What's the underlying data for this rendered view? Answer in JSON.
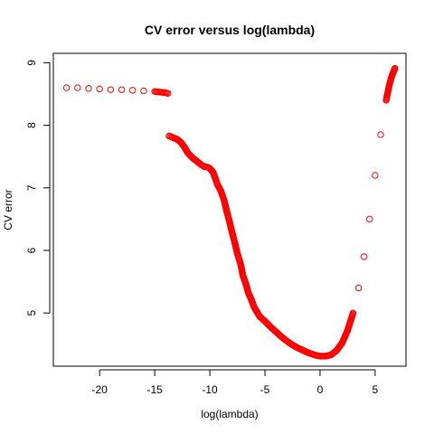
{
  "chart_data": {
    "type": "scatter",
    "title": "CV error versus log(lambda)",
    "xlabel": "log(lambda)",
    "ylabel": "CV error",
    "xlim": [
      -24.2,
      7.8
    ],
    "ylim": [
      4.15,
      9.15
    ],
    "xticks": [
      -20,
      -15,
      -10,
      -5,
      0,
      5
    ],
    "yticks": [
      5,
      6,
      7,
      8,
      9
    ],
    "xtick_labels": [
      "-20",
      "-15",
      "-10",
      "-5",
      "0",
      "5"
    ],
    "ytick_labels": [
      "5",
      "6",
      "7",
      "8",
      "9"
    ],
    "marker": "open-circle",
    "color": "#ff0000",
    "grid": false,
    "series": [
      {
        "x": [
          -23.0,
          -22.0,
          -21.0,
          -20.0,
          -19.0,
          -18.0,
          -17.0,
          -16.0,
          -15.0,
          -14.5,
          -14.0,
          -13.8,
          -13.7,
          -13.3,
          -13.0,
          -12.7,
          -12.5,
          -12.3,
          -12.0,
          -11.8,
          -11.5,
          -11.2,
          -11.0,
          -10.7,
          -10.5,
          -10.2,
          -10.0,
          -9.7,
          -9.5,
          -9.3,
          -9.0,
          -8.7,
          -8.5,
          -8.2,
          -8.0,
          -7.7,
          -7.5,
          -7.2,
          -7.0,
          -6.7,
          -6.5,
          -6.2,
          -6.0,
          -5.7,
          -5.5,
          -5.2,
          -5.0,
          -4.5,
          -4.0,
          -3.5,
          -3.0,
          -2.5,
          -2.0,
          -1.5,
          -1.0,
          -0.5,
          0.0,
          0.5,
          1.0,
          1.5,
          2.0,
          2.5,
          3.0,
          3.5,
          4.0,
          4.5,
          5.0,
          5.5,
          6.0,
          6.3,
          6.5,
          6.7,
          6.8
        ],
        "y": [
          8.6,
          8.6,
          8.59,
          8.58,
          8.57,
          8.57,
          8.56,
          8.55,
          8.54,
          8.53,
          8.52,
          8.51,
          7.83,
          7.8,
          7.78,
          7.74,
          7.7,
          7.65,
          7.56,
          7.52,
          7.47,
          7.43,
          7.4,
          7.36,
          7.34,
          7.33,
          7.31,
          7.25,
          7.15,
          7.05,
          6.95,
          6.8,
          6.65,
          6.45,
          6.3,
          6.1,
          5.95,
          5.78,
          5.6,
          5.45,
          5.32,
          5.2,
          5.1,
          5.01,
          4.95,
          4.9,
          4.87,
          4.78,
          4.7,
          4.62,
          4.55,
          4.49,
          4.44,
          4.4,
          4.36,
          4.33,
          4.31,
          4.31,
          4.33,
          4.4,
          4.52,
          4.72,
          5.0,
          5.4,
          5.9,
          6.5,
          7.2,
          7.85,
          8.4,
          8.65,
          8.78,
          8.87,
          8.91
        ]
      }
    ]
  }
}
